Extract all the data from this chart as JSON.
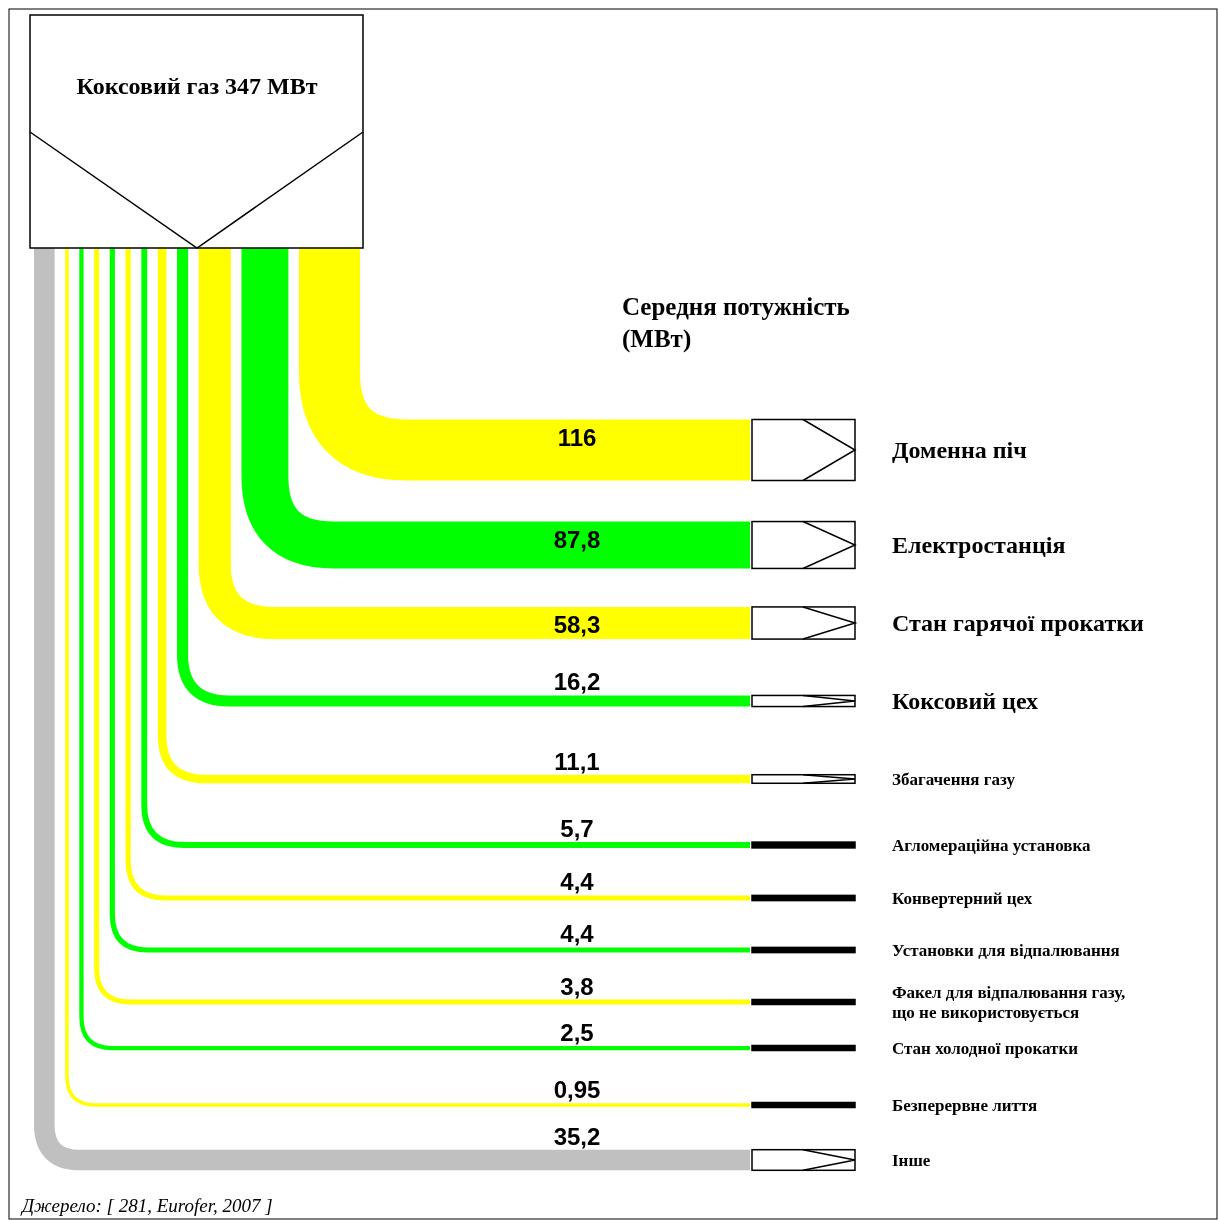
{
  "chart_data": {
    "type": "other",
    "title": "Коксовий газ 347 МВт",
    "subtitle": "Середня потужність (МВт)",
    "categories": [
      "Доменна піч",
      "Електростанція",
      "Стан гарячої прокатки",
      "Коксовий цех",
      "Збагачення газу",
      "Агломераційна установка",
      "Конвертерний цех",
      "Установки для відпалювання",
      "Факел для відпалювання газу, що не використовується",
      "Стан холодної прокатки",
      "Безперервне лиття",
      "Інше"
    ],
    "values": [
      116,
      87.8,
      58.3,
      16.2,
      11.1,
      5.7,
      4.4,
      4.4,
      3.8,
      2.5,
      0.95,
      35.2
    ],
    "value_labels": [
      "116",
      "87,8",
      "58,3",
      "16,2",
      "11,1",
      "5,7",
      "4,4",
      "4,4",
      "3,8",
      "2,5",
      "0,95",
      "35,2"
    ],
    "colors": [
      "#ffff00",
      "#00ff00",
      "#ffff00",
      "#00ff00",
      "#ffff00",
      "#00ff00",
      "#ffff00",
      "#00ff00",
      "#ffff00",
      "#00ff00",
      "#ffff00",
      "#c0c0c0"
    ],
    "annotations": [
      "Джерело: [ 281, Eurofer, 2007 ]"
    ]
  }
}
